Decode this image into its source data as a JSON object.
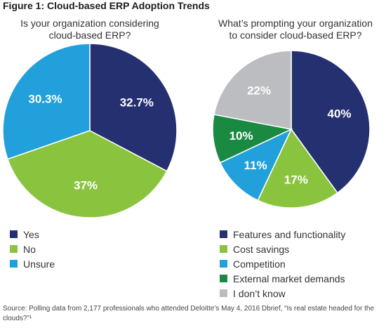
{
  "figure_title": "Figure 1: Cloud-based ERP Adoption Trends",
  "chart_data": [
    {
      "type": "pie",
      "title": "Is your organization considering cloud-based ERP?",
      "title_lines": [
        "Is your organization considering",
        "cloud-based ERP?"
      ],
      "series": [
        {
          "name": "Yes",
          "value": 32.7,
          "label": "32.7%",
          "color": "#253070"
        },
        {
          "name": "No",
          "value": 37,
          "label": "37%",
          "color": "#8ac43f"
        },
        {
          "name": "Unsure",
          "value": 30.3,
          "label": "30.3%",
          "color": "#22a0db"
        }
      ],
      "legend_position": "bottom-left"
    },
    {
      "type": "pie",
      "title": "What's prompting your organization to consider cloud-based ERP?",
      "title_lines": [
        "What’s prompting your organization",
        "to consider cloud-based ERP?"
      ],
      "series": [
        {
          "name": "Features and functionality",
          "value": 40,
          "label": "40%",
          "color": "#253070"
        },
        {
          "name": "Cost savings",
          "value": 17,
          "label": "17%",
          "color": "#8ac43f"
        },
        {
          "name": "Competition",
          "value": 11,
          "label": "11%",
          "color": "#22a0db"
        },
        {
          "name": "External market demands",
          "value": 10,
          "label": "10%",
          "color": "#1a8a43"
        },
        {
          "name": "I don’t know",
          "value": 22,
          "label": "22%",
          "color": "#bcbdc0"
        }
      ],
      "legend_position": "bottom"
    }
  ],
  "source_note": "Source: Polling data from 2,177 professionals who attended Deloitte’s May 4, 2016 Dbrief, “Is real estate headed for the clouds?”¹"
}
